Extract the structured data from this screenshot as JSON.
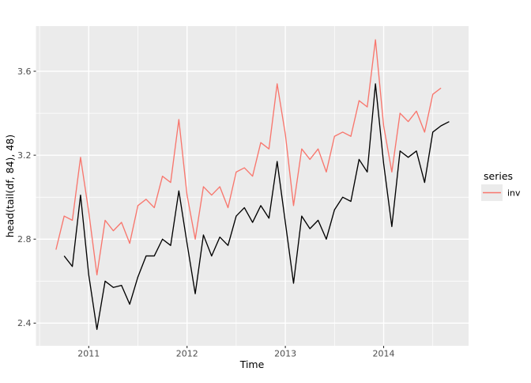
{
  "chart_data": {
    "type": "line",
    "title": "",
    "xlabel": "Time",
    "ylabel": "head(tail(df, 84), 48)",
    "x_ticks": [
      2011,
      2012,
      2013,
      2014
    ],
    "x_tick_labels": [
      "2011",
      "2012",
      "2013",
      "2014"
    ],
    "y_ticks": [
      2.4,
      2.8,
      3.2,
      3.6
    ],
    "y_tick_labels": [
      "2.4",
      "2.8",
      "3.2",
      "3.6"
    ],
    "x_minor": [
      2010.5,
      2011.5,
      2012.5,
      2013.5,
      2014.5
    ],
    "y_minor": [
      2.6,
      3.0,
      3.4
    ],
    "xlim": [
      2010.463,
      2014.864
    ],
    "ylim": [
      2.292,
      3.815
    ],
    "grid": true,
    "frequency": "monthly",
    "legend": {
      "position": "right",
      "title": "series",
      "entries": [
        {
          "label": "inv",
          "color": "#F8766D"
        }
      ]
    },
    "series": [
      {
        "name": "inv",
        "color": "#F8766D",
        "in_legend": true,
        "start": "2010-09",
        "values": [
          2.75,
          2.91,
          2.89,
          3.19,
          2.93,
          2.63,
          2.89,
          2.84,
          2.88,
          2.78,
          2.96,
          2.99,
          2.95,
          3.1,
          3.07,
          3.37,
          3.01,
          2.8,
          3.05,
          3.01,
          3.05,
          2.95,
          3.12,
          3.14,
          3.1,
          3.26,
          3.23,
          3.54,
          3.3,
          2.96,
          3.23,
          3.18,
          3.23,
          3.12,
          3.29,
          3.31,
          3.29,
          3.46,
          3.43,
          3.75,
          3.34,
          3.12,
          3.4,
          3.36,
          3.41,
          3.31,
          3.49,
          3.52
        ]
      },
      {
        "name": "value",
        "color": "#000000",
        "in_legend": false,
        "start": "2010-10",
        "values": [
          2.72,
          2.67,
          3.01,
          2.63,
          2.37,
          2.6,
          2.57,
          2.58,
          2.49,
          2.62,
          2.72,
          2.72,
          2.8,
          2.77,
          3.03,
          2.78,
          2.54,
          2.82,
          2.72,
          2.81,
          2.77,
          2.91,
          2.95,
          2.88,
          2.96,
          2.9,
          3.17,
          2.88,
          2.59,
          2.91,
          2.85,
          2.89,
          2.8,
          2.94,
          3.0,
          2.98,
          3.18,
          3.12,
          3.54,
          3.16,
          2.86,
          3.22,
          3.19,
          3.22,
          3.07,
          3.31,
          3.34,
          3.36
        ]
      }
    ],
    "colors": {
      "panel_background": "#EBEBEB",
      "gridline": "#FFFFFF",
      "tick_mark": "#333333",
      "tick_label": "#4D4D4D",
      "legend_key_fill": "#EBEBEB"
    }
  }
}
